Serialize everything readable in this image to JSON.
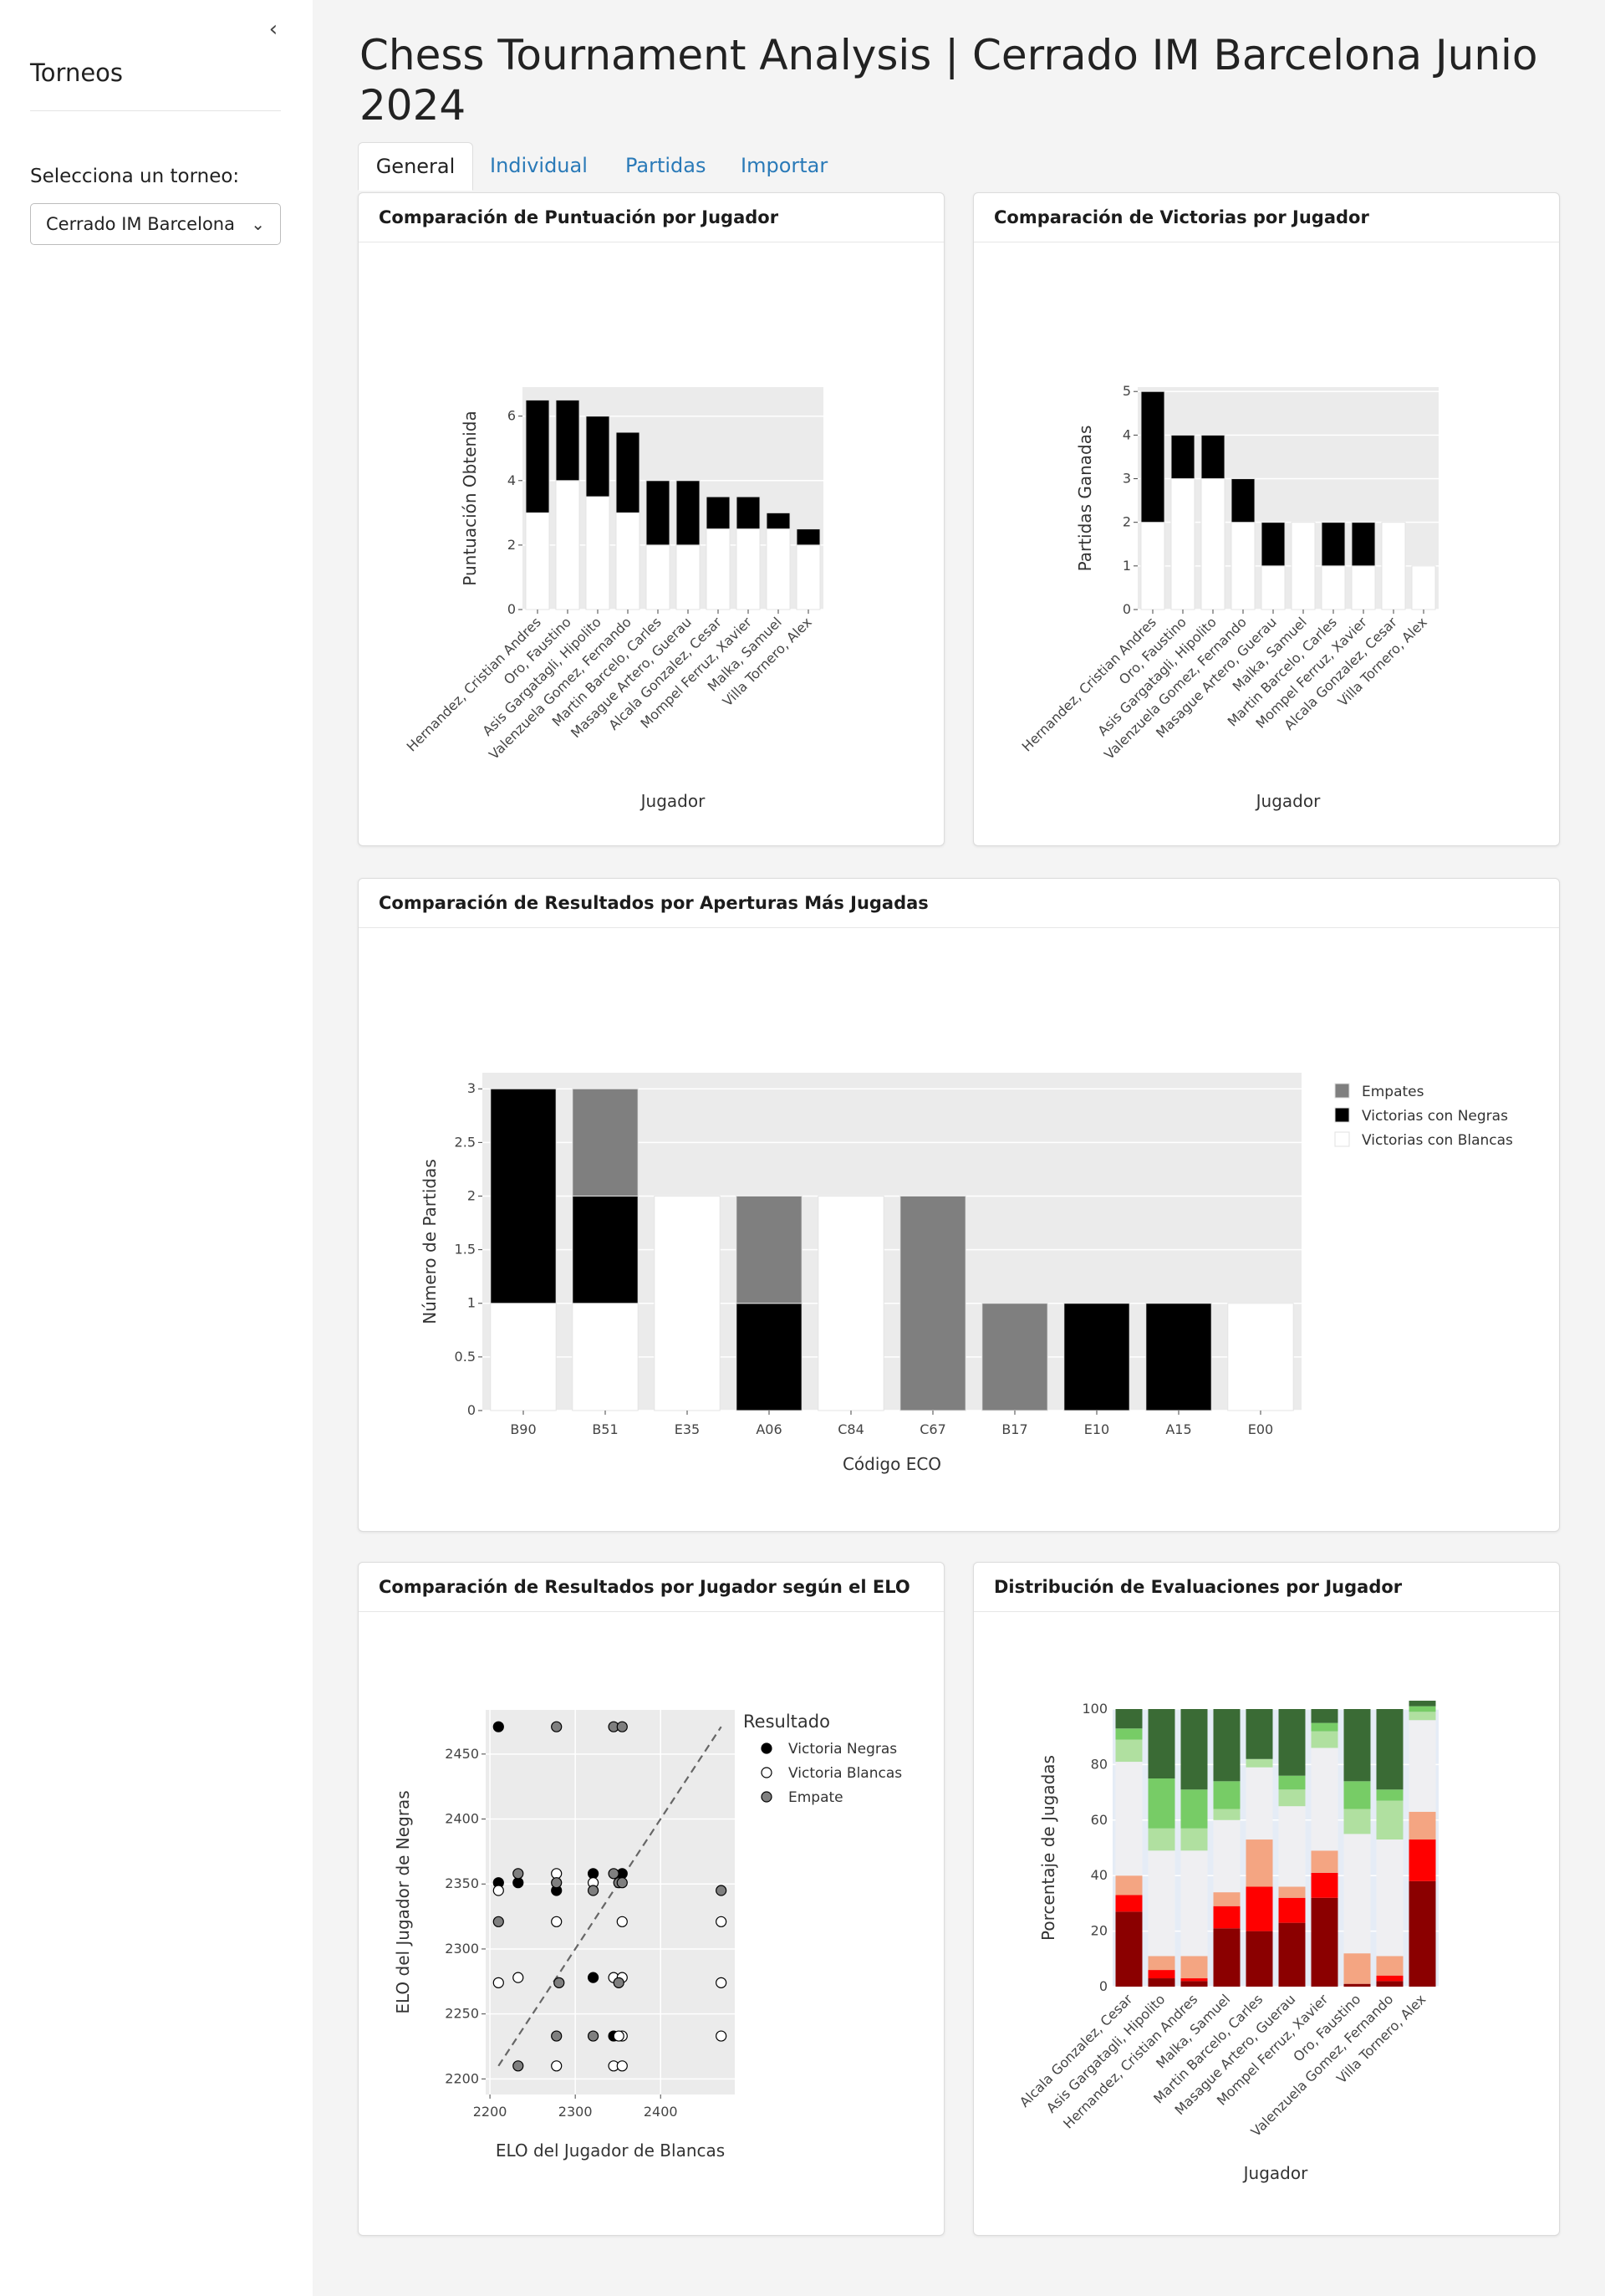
{
  "sidebar": {
    "collapse_icon": "chevron-left-icon",
    "title": "Torneos",
    "select_label": "Selecciona un torneo:",
    "select_value": "Cerrado IM Barcelona",
    "select_icon": "chevron-down-icon"
  },
  "page": {
    "title": "Chess Tournament Analysis | Cerrado IM Barcelona Junio 2024"
  },
  "tabs": [
    {
      "label": "General",
      "active": true
    },
    {
      "label": "Individual",
      "active": false
    },
    {
      "label": "Partidas",
      "active": false
    },
    {
      "label": "Importar",
      "active": false
    }
  ],
  "colors": {
    "panel_bg": "#ebebeb",
    "black": "#000000",
    "white": "#ffffff",
    "draw_grey": "#7f7f7f",
    "tab_link": "#2a7ab8",
    "plotly_axis": "#2a3f5f"
  },
  "cards": {
    "score": {
      "title": "Comparación de Puntuación por Jugador"
    },
    "wins": {
      "title": "Comparación de Victorias por Jugador"
    },
    "openings": {
      "title": "Comparación de Resultados por Aperturas Más Jugadas"
    },
    "elo": {
      "title": "Comparación de Resultados por Jugador según el ELO"
    },
    "evals": {
      "title": "Distribución de Evaluaciones por Jugador"
    }
  },
  "chart_data": [
    {
      "id": "score",
      "type": "bar",
      "stacked": true,
      "xlabel": "Jugador",
      "ylabel": "Puntuación Obtenida",
      "ylim": [
        0,
        6.9
      ],
      "yticks": [
        0,
        2,
        4,
        6
      ],
      "categories": [
        "Hernandez, Cristian Andres",
        "Oro, Faustino",
        "Asis Gargatagli, Hipolito",
        "Valenzuela Gomez, Fernando",
        "Martin Barcelo, Carles",
        "Masague Artero, Guerau",
        "Alcala Gonzalez, Cesar",
        "Mompel Ferruz, Xavier",
        "Malka, Samuel",
        "Villa Tornero, Alex"
      ],
      "series": [
        {
          "values": [
            3,
            4,
            3.5,
            3,
            2,
            2,
            2.5,
            2.5,
            2.5,
            2
          ],
          "color": "#ffffff"
        },
        {
          "values": [
            3.5,
            2.5,
            2.5,
            2.5,
            2,
            2,
            1,
            1,
            0.5,
            0.5
          ],
          "color": "#000000"
        }
      ]
    },
    {
      "id": "wins",
      "type": "bar",
      "stacked": true,
      "xlabel": "Jugador",
      "ylabel": "Partidas Ganadas",
      "ylim": [
        0,
        5.1
      ],
      "yticks": [
        0,
        1,
        2,
        3,
        4,
        5
      ],
      "categories": [
        "Hernandez, Cristian Andres",
        "Oro, Faustino",
        "Asis Gargatagli, Hipolito",
        "Valenzuela Gomez, Fernando",
        "Masague Artero, Guerau",
        "Malka, Samuel",
        "Martin Barcelo, Carles",
        "Mompel Ferruz, Xavier",
        "Alcala Gonzalez, Cesar",
        "Villa Tornero, Alex"
      ],
      "series": [
        {
          "values": [
            2,
            3,
            3,
            2,
            1,
            2,
            1,
            1,
            2,
            1
          ],
          "color": "#ffffff"
        },
        {
          "values": [
            3,
            1,
            1,
            1,
            1,
            0,
            1,
            1,
            0,
            0
          ],
          "color": "#000000"
        }
      ]
    },
    {
      "id": "openings",
      "type": "bar",
      "stacked": true,
      "xlabel": "Código ECO",
      "ylabel": "Número de Partidas",
      "ylim": [
        0,
        3.15
      ],
      "yticks": [
        0,
        0.5,
        1,
        1.5,
        2,
        2.5,
        3
      ],
      "categories": [
        "B90",
        "B51",
        "E35",
        "A06",
        "C84",
        "C67",
        "B17",
        "E10",
        "A15",
        "E00"
      ],
      "series": [
        {
          "name": "Victorias con Blancas",
          "values": [
            1,
            1,
            2,
            0,
            2,
            0,
            0,
            0,
            0,
            1
          ],
          "color": "#ffffff"
        },
        {
          "name": "Victorias con Negras",
          "values": [
            2,
            1,
            0,
            1,
            0,
            0,
            0,
            1,
            1,
            0
          ],
          "color": "#000000"
        },
        {
          "name": "Empates",
          "values": [
            0,
            1,
            0,
            1,
            0,
            2,
            1,
            0,
            0,
            0
          ],
          "color": "#7f7f7f"
        }
      ],
      "legend_order": [
        "Empates",
        "Victorias con Negras",
        "Victorias con Blancas"
      ],
      "legend": "right"
    },
    {
      "id": "elo",
      "type": "scatter",
      "xlabel": "ELO del Jugador de Blancas",
      "ylabel": "ELO del Jugador de Negras",
      "xlim": [
        2195,
        2487
      ],
      "ylim": [
        2188,
        2484
      ],
      "xticks": [
        2200,
        2300,
        2400
      ],
      "yticks": [
        2200,
        2250,
        2300,
        2350,
        2400,
        2450
      ],
      "legend_title": "Resultado",
      "legend": "right",
      "series": [
        {
          "name": "Victoria Negras",
          "color": "#000000",
          "points": [
            [
              2210,
              2471
            ],
            [
              2210,
              2351
            ],
            [
              2233,
              2351
            ],
            [
              2278,
              2345
            ],
            [
              2321,
              2358
            ],
            [
              2321,
              2278
            ],
            [
              2345,
              2233
            ],
            [
              2355,
              2358
            ]
          ]
        },
        {
          "name": "Victoria Blancas",
          "color": "#ffffff",
          "points": [
            [
              2210,
              2345
            ],
            [
              2210,
              2274
            ],
            [
              2233,
              2278
            ],
            [
              2278,
              2358
            ],
            [
              2278,
              2321
            ],
            [
              2278,
              2210
            ],
            [
              2345,
              2278
            ],
            [
              2345,
              2210
            ],
            [
              2355,
              2321
            ],
            [
              2355,
              2278
            ],
            [
              2355,
              2233
            ],
            [
              2355,
              2210
            ],
            [
              2471,
              2321
            ],
            [
              2471,
              2274
            ],
            [
              2471,
              2233
            ],
            [
              2351,
              2233
            ],
            [
              2321,
              2351
            ]
          ]
        },
        {
          "name": "Empate",
          "color": "#7f7f7f",
          "points": [
            [
              2210,
              2321
            ],
            [
              2233,
              2358
            ],
            [
              2233,
              2210
            ],
            [
              2278,
              2471
            ],
            [
              2278,
              2351
            ],
            [
              2278,
              2233
            ],
            [
              2281,
              2274
            ],
            [
              2321,
              2345
            ],
            [
              2321,
              2233
            ],
            [
              2345,
              2471
            ],
            [
              2345,
              2358
            ],
            [
              2351,
              2351
            ],
            [
              2351,
              2274
            ],
            [
              2355,
              2471
            ],
            [
              2355,
              2351
            ],
            [
              2471,
              2345
            ]
          ]
        }
      ],
      "reference_line": {
        "from": [
          2210,
          2210
        ],
        "to": [
          2471,
          2471
        ],
        "style": "dashed"
      }
    },
    {
      "id": "evals",
      "type": "bar",
      "stacked": true,
      "percent": true,
      "xlabel": "Jugador",
      "ylabel": "Porcentaje de Jugadas",
      "ylim": [
        0,
        100
      ],
      "yticks": [
        0,
        20,
        40,
        60,
        80,
        100
      ],
      "categories": [
        "Alcala Gonzalez, Cesar",
        "Asis Gargatagli, Hipolito",
        "Hernandez, Cristian Andres",
        "Malka, Samuel",
        "Martin Barcelo, Carles",
        "Masague Artero, Guerau",
        "Mompel Ferruz, Xavier",
        "Oro, Faustino",
        "Valenzuela Gomez, Fernando",
        "Villa Tornero, Alex"
      ],
      "series": [
        {
          "color": "#8b0000",
          "values": [
            27,
            3,
            2,
            21,
            20,
            23,
            32,
            1,
            2,
            38
          ]
        },
        {
          "color": "#ff0000",
          "values": [
            6,
            3,
            1,
            8,
            16,
            9,
            9,
            0,
            2,
            15
          ]
        },
        {
          "color": "#f4a582",
          "values": [
            7,
            5,
            8,
            5,
            17,
            4,
            8,
            11,
            7,
            10
          ]
        },
        {
          "color": "#efeff2",
          "values": [
            41,
            38,
            38,
            26,
            26,
            29,
            37,
            43,
            42,
            33
          ]
        },
        {
          "color": "#b0e0a0",
          "values": [
            8,
            8,
            8,
            4,
            3,
            6,
            6,
            9,
            14,
            3
          ]
        },
        {
          "color": "#77cc66",
          "values": [
            4,
            18,
            14,
            10,
            0,
            5,
            3,
            10,
            4,
            2
          ]
        },
        {
          "color": "#3a6b35",
          "values": [
            7,
            25,
            29,
            26,
            18,
            24,
            5,
            26,
            29,
            2
          ]
        }
      ]
    }
  ]
}
